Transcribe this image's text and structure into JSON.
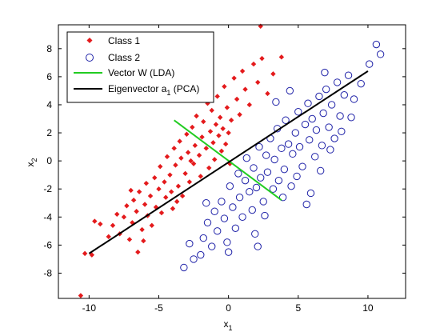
{
  "chart_data": {
    "type": "scatter",
    "xlabel": "x",
    "xlabel_sub": "1",
    "ylabel": "x",
    "ylabel_sub": "2",
    "xlim": [
      -12.2,
      12.7
    ],
    "ylim": [
      -9.8,
      9.7
    ],
    "xticks": [
      -10,
      -5,
      0,
      5,
      10
    ],
    "yticks": [
      -8,
      -6,
      -4,
      -2,
      0,
      2,
      4,
      6,
      8
    ],
    "grid": false,
    "legend_position": "top-left",
    "legend": {
      "class1": "Class 1",
      "class2": "Class 2",
      "lda": "Vector W (LDA)",
      "pca_prefix": "Eigenvector a",
      "pca_sub": "1",
      "pca_suffix": " (PCA)"
    },
    "colors": {
      "class1": "#e41a1c",
      "class2": "#1f22a8",
      "lda": "#22cc22",
      "pca": "#000000"
    },
    "series": [
      {
        "name": "Class 1",
        "marker": "diamond",
        "points": [
          [
            -10.3,
            -6.6
          ],
          [
            -9.8,
            -6.7
          ],
          [
            -9.6,
            -4.3
          ],
          [
            -9.2,
            -4.5
          ],
          [
            -8.6,
            -5.4
          ],
          [
            -8.3,
            -4.6
          ],
          [
            -8.0,
            -3.8
          ],
          [
            -7.8,
            -5.2
          ],
          [
            -7.5,
            -4.0
          ],
          [
            -7.3,
            -3.2
          ],
          [
            -7.1,
            -5.6
          ],
          [
            -6.9,
            -4.4
          ],
          [
            -6.8,
            -2.8
          ],
          [
            -6.6,
            -3.6
          ],
          [
            -6.5,
            -6.5
          ],
          [
            -6.4,
            -2.2
          ],
          [
            -6.2,
            -4.9
          ],
          [
            -6.0,
            -3.1
          ],
          [
            -5.9,
            -1.6
          ],
          [
            -5.8,
            -3.9
          ],
          [
            -5.6,
            -2.5
          ],
          [
            -5.5,
            -4.6
          ],
          [
            -5.3,
            -1.2
          ],
          [
            -5.2,
            -3.3
          ],
          [
            -5.0,
            -2.0
          ],
          [
            -4.9,
            -0.4
          ],
          [
            -4.8,
            -3.7
          ],
          [
            -4.6,
            -1.5
          ],
          [
            -4.5,
            -2.6
          ],
          [
            -4.4,
            0.3
          ],
          [
            -4.2,
            -1.0
          ],
          [
            -4.1,
            -2.2
          ],
          [
            -4.0,
            -3.4
          ],
          [
            -3.9,
            0.9
          ],
          [
            -3.8,
            -0.3
          ],
          [
            -3.6,
            -1.8
          ],
          [
            -3.5,
            1.4
          ],
          [
            -3.4,
            0.2
          ],
          [
            -3.3,
            -2.5
          ],
          [
            -3.1,
            -0.9
          ],
          [
            -3.0,
            1.9
          ],
          [
            -2.9,
            0.6
          ],
          [
            -2.8,
            -1.5
          ],
          [
            -2.6,
            2.4
          ],
          [
            -2.5,
            -0.2
          ],
          [
            -2.4,
            1.1
          ],
          [
            -2.3,
            3.2
          ],
          [
            -2.1,
            0.4
          ],
          [
            -2.0,
            -1.1
          ],
          [
            -1.9,
            1.7
          ],
          [
            -1.8,
            2.8
          ],
          [
            -1.6,
            0.9
          ],
          [
            -1.5,
            4.1
          ],
          [
            -1.4,
            -0.5
          ],
          [
            -1.3,
            2.1
          ],
          [
            -1.2,
            3.6
          ],
          [
            -1.1,
            1.3
          ],
          [
            -1.0,
            0.1
          ],
          [
            -0.9,
            2.6
          ],
          [
            -0.8,
            4.6
          ],
          [
            -0.7,
            1.8
          ],
          [
            -0.6,
            3.1
          ],
          [
            -0.5,
            0.7
          ],
          [
            -0.4,
            2.3
          ],
          [
            -0.3,
            5.3
          ],
          [
            -0.2,
            1.2
          ],
          [
            -0.1,
            3.8
          ],
          [
            0.0,
            2.0
          ],
          [
            0.1,
            -0.2
          ],
          [
            0.2,
            2.9
          ],
          [
            0.4,
            5.9
          ],
          [
            0.6,
            4.4
          ],
          [
            0.8,
            3.3
          ],
          [
            1.0,
            6.4
          ],
          [
            1.2,
            5.1
          ],
          [
            1.5,
            4.0
          ],
          [
            1.8,
            6.9
          ],
          [
            2.1,
            5.6
          ],
          [
            2.4,
            7.3
          ],
          [
            2.8,
            4.8
          ],
          [
            3.2,
            6.2
          ],
          [
            3.8,
            7.4
          ],
          [
            2.3,
            9.6
          ],
          [
            -10.6,
            -9.6
          ],
          [
            -7.0,
            -2.1
          ],
          [
            -6.1,
            -5.7
          ],
          [
            -3.7,
            -2.9
          ],
          [
            -2.7,
            0.0
          ]
        ]
      },
      {
        "name": "Class 2",
        "marker": "circle",
        "points": [
          [
            -3.2,
            -7.6
          ],
          [
            -2.5,
            -7.0
          ],
          [
            -2.0,
            -6.7
          ],
          [
            -1.8,
            -5.5
          ],
          [
            -1.5,
            -4.4
          ],
          [
            -1.2,
            -6.1
          ],
          [
            -1.0,
            -3.6
          ],
          [
            -0.8,
            -5.0
          ],
          [
            -0.5,
            -2.9
          ],
          [
            -0.3,
            -4.1
          ],
          [
            -0.1,
            -5.8
          ],
          [
            0.1,
            -1.8
          ],
          [
            0.3,
            -3.3
          ],
          [
            0.5,
            -4.8
          ],
          [
            0.7,
            -0.9
          ],
          [
            0.8,
            -2.6
          ],
          [
            1.0,
            -4.0
          ],
          [
            1.2,
            -1.4
          ],
          [
            1.3,
            0.2
          ],
          [
            1.5,
            -2.2
          ],
          [
            1.7,
            -3.5
          ],
          [
            1.8,
            -0.5
          ],
          [
            2.0,
            -1.9
          ],
          [
            2.2,
            1.0
          ],
          [
            2.3,
            -1.2
          ],
          [
            2.5,
            -2.9
          ],
          [
            2.7,
            0.4
          ],
          [
            2.8,
            -0.8
          ],
          [
            3.0,
            1.6
          ],
          [
            3.2,
            -2.0
          ],
          [
            3.3,
            0.1
          ],
          [
            3.5,
            2.3
          ],
          [
            3.6,
            -1.4
          ],
          [
            3.8,
            0.9
          ],
          [
            4.0,
            -0.6
          ],
          [
            4.1,
            2.9
          ],
          [
            4.3,
            1.2
          ],
          [
            4.5,
            -1.8
          ],
          [
            4.6,
            0.5
          ],
          [
            4.8,
            2.0
          ],
          [
            5.0,
            3.5
          ],
          [
            5.1,
            1.0
          ],
          [
            5.3,
            -0.4
          ],
          [
            5.5,
            2.6
          ],
          [
            5.7,
            4.1
          ],
          [
            5.8,
            1.5
          ],
          [
            6.0,
            3.0
          ],
          [
            6.2,
            0.3
          ],
          [
            6.3,
            2.2
          ],
          [
            6.5,
            4.6
          ],
          [
            6.7,
            1.1
          ],
          [
            6.8,
            3.4
          ],
          [
            7.0,
            5.1
          ],
          [
            7.2,
            2.4
          ],
          [
            7.4,
            4.0
          ],
          [
            7.6,
            1.6
          ],
          [
            7.8,
            5.6
          ],
          [
            8.0,
            3.2
          ],
          [
            8.3,
            4.7
          ],
          [
            8.6,
            6.1
          ],
          [
            9.0,
            4.4
          ],
          [
            9.5,
            5.5
          ],
          [
            10.1,
            6.9
          ],
          [
            10.6,
            8.3
          ],
          [
            10.9,
            7.6
          ],
          [
            -2.8,
            -5.9
          ],
          [
            -1.6,
            -3.0
          ],
          [
            0.0,
            -6.5
          ],
          [
            1.9,
            -5.2
          ],
          [
            2.6,
            -3.9
          ],
          [
            3.9,
            -2.6
          ],
          [
            4.9,
            -1.1
          ],
          [
            5.9,
            -2.3
          ],
          [
            6.6,
            -0.7
          ],
          [
            7.3,
            0.8
          ],
          [
            8.1,
            2.1
          ],
          [
            8.8,
            3.1
          ],
          [
            3.4,
            4.2
          ],
          [
            2.1,
            -6.1
          ],
          [
            4.4,
            5.0
          ],
          [
            6.9,
            6.3
          ],
          [
            5.6,
            -3.1
          ]
        ]
      }
    ],
    "lines": [
      {
        "name": "Vector W (LDA)",
        "x": [
          -3.9,
          3.8
        ],
        "y": [
          2.9,
          -2.8
        ]
      },
      {
        "name": "Eigenvector a1 (PCA)",
        "x": [
          -10.0,
          10.0
        ],
        "y": [
          -6.6,
          6.4
        ]
      }
    ]
  }
}
